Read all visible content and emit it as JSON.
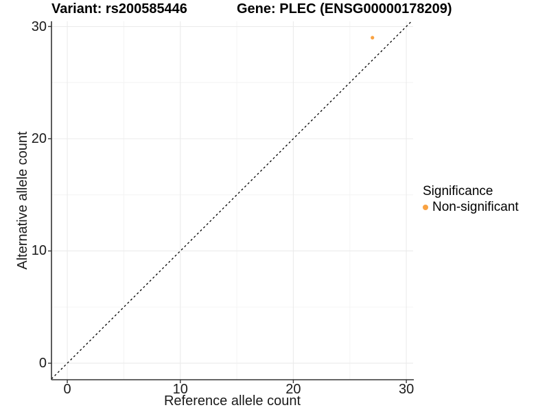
{
  "chart_data": {
    "type": "scatter",
    "title_left": "Variant: rs200585446",
    "title_right": "Gene: PLEC (ENSG00000178209)",
    "xlabel": "Reference allele count",
    "ylabel": "Alternative allele count",
    "xlim": [
      -1.4,
      30.6
    ],
    "ylim": [
      -1.47,
      30.46
    ],
    "xticks": [
      0,
      10,
      20,
      30
    ],
    "yticks": [
      0,
      10,
      20,
      30
    ],
    "xticks_minor": [
      5,
      15,
      25
    ],
    "yticks_minor": [
      5,
      15,
      25
    ],
    "grid": "major and minor, light gray on white",
    "reference_line": {
      "type": "identity y=x",
      "style": "dashed",
      "color": "#000000"
    },
    "series": [
      {
        "name": "Non-significant",
        "color": "#F9A242",
        "points": [
          {
            "x": 27,
            "y": 29
          }
        ]
      }
    ],
    "legend": {
      "title": "Significance",
      "position": "right",
      "items": [
        {
          "label": "Non-significant",
          "color": "#F9A242"
        }
      ]
    },
    "colors": {
      "grid_major": "#EBEBEB",
      "grid_minor": "#F3F3F3",
      "axis": "#333333",
      "text": "#1A1A1A",
      "point": "#F9A242"
    }
  }
}
